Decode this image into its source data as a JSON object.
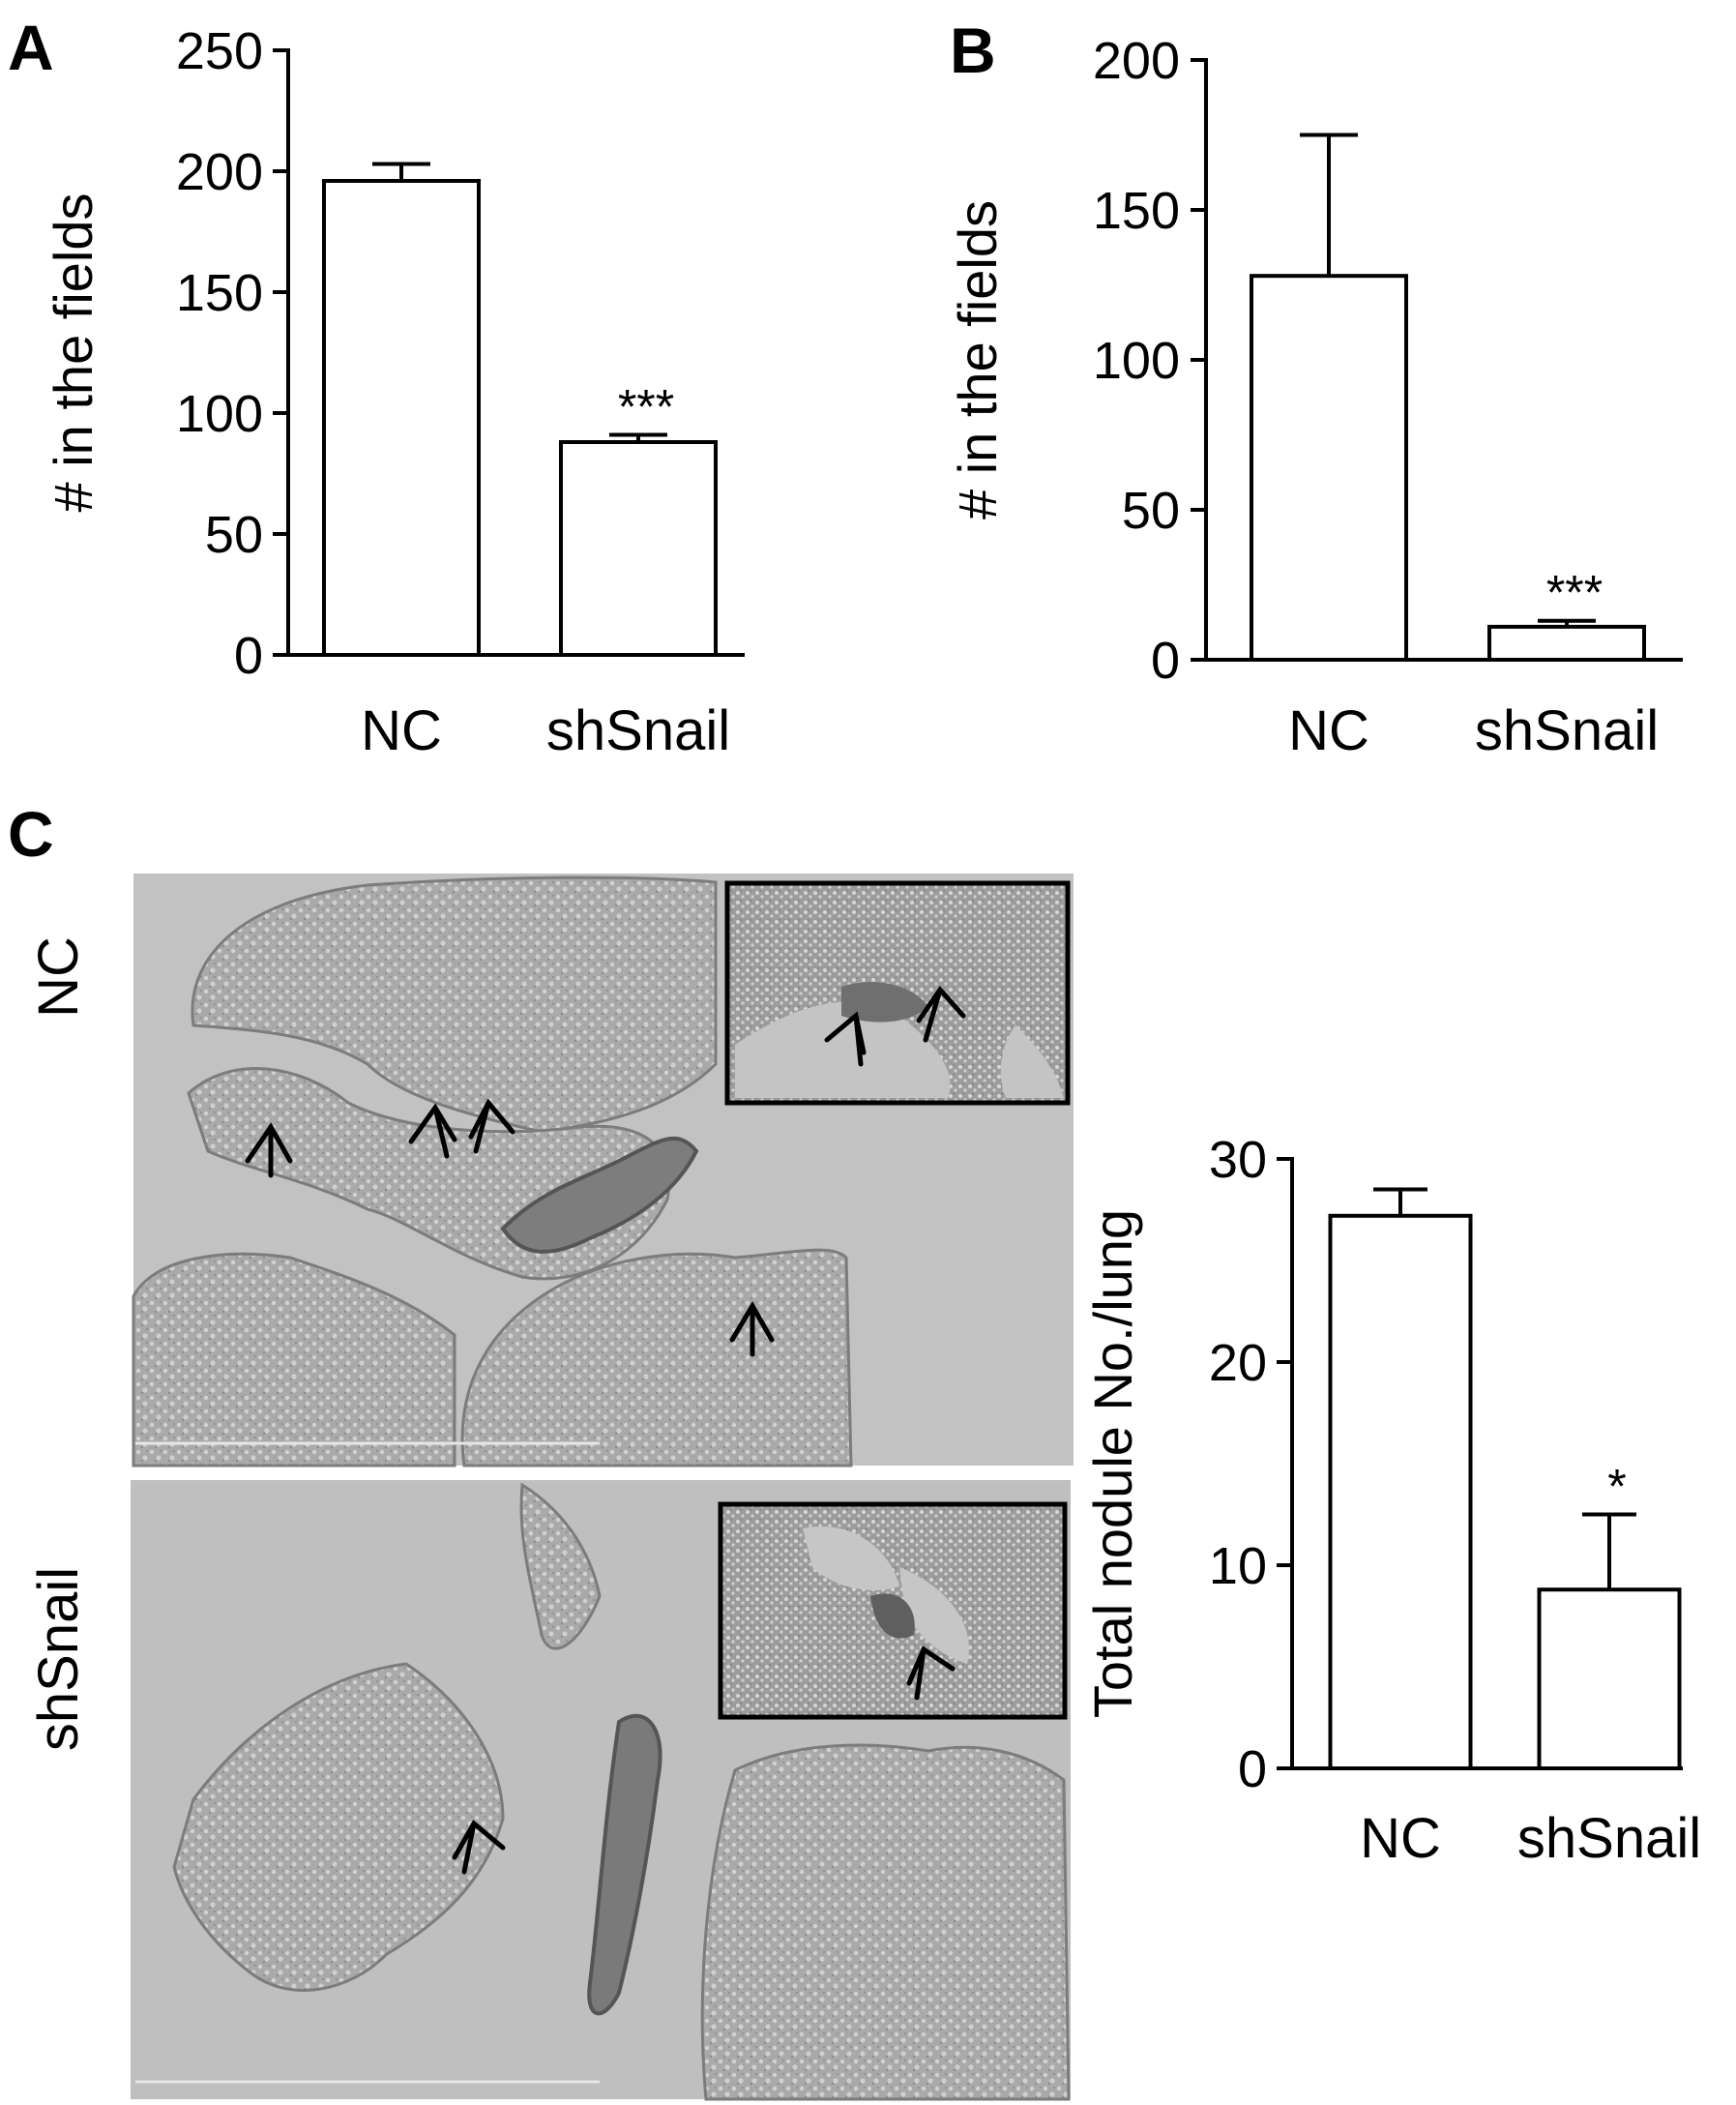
{
  "panels": {
    "A": "A",
    "B": "B",
    "C": "C"
  },
  "micrographs": {
    "row_labels": [
      "NC",
      "shSnail"
    ]
  },
  "chart_data": [
    {
      "id": "A",
      "type": "bar",
      "categories": [
        "NC",
        "shSnail"
      ],
      "values": [
        196,
        88
      ],
      "errors": [
        7,
        3
      ],
      "annotations": [
        "",
        "***"
      ],
      "title": "",
      "xlabel": "",
      "ylabel": "# in the fields",
      "ylim": [
        0,
        250
      ],
      "yticks": [
        0,
        50,
        100,
        150,
        200,
        250
      ],
      "grid": false
    },
    {
      "id": "B",
      "type": "bar",
      "categories": [
        "NC",
        "shSnail"
      ],
      "values": [
        128,
        11
      ],
      "errors": [
        47,
        2
      ],
      "annotations": [
        "",
        "***"
      ],
      "title": "",
      "xlabel": "",
      "ylabel": "# in the fields",
      "ylim": [
        0,
        200
      ],
      "yticks": [
        0,
        50,
        100,
        150,
        200
      ],
      "grid": false
    },
    {
      "id": "C",
      "type": "bar",
      "categories": [
        "NC",
        "shSnail"
      ],
      "values": [
        27.2,
        8.8
      ],
      "errors": [
        1.3,
        3.7
      ],
      "annotations": [
        "",
        "*"
      ],
      "title": "",
      "xlabel": "",
      "ylabel": "Total nodule No./lung",
      "ylim": [
        0,
        30
      ],
      "yticks": [
        0,
        10,
        20,
        30
      ],
      "grid": false
    }
  ]
}
